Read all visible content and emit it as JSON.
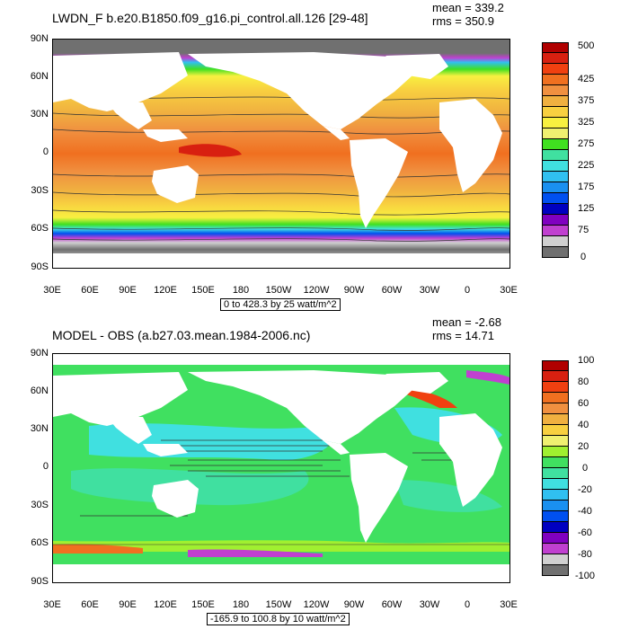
{
  "panels": [
    {
      "title": "LWDN_F b.e20.B1850.f09_g16.pi_control.all.126 [29-48]",
      "mean_label": "mean = 339.2",
      "rms_label": "rms = 350.9",
      "range_label": "0 to 428.3 by 25 watt/m^2",
      "colorbar_labels": [
        "500",
        "425",
        "375",
        "325",
        "275",
        "225",
        "175",
        "125",
        "75",
        "0"
      ],
      "colorbar_colors": [
        "#b00000",
        "#d82010",
        "#f04010",
        "#f07020",
        "#f09040",
        "#f0b040",
        "#f8d040",
        "#f8f040",
        "#f0f070",
        "#40e020",
        "#40e0a0",
        "#40e0e0",
        "#30c0f0",
        "#1a90f0",
        "#0050f0",
        "#0000c0",
        "#8000c0",
        "#c040d0",
        "#d0d0d0",
        "#707070"
      ]
    },
    {
      "title": "MODEL - OBS (a.b27.03.mean.1984-2006.nc)",
      "mean_label": "mean = -2.68",
      "rms_label": "rms = 14.71",
      "range_label": "-165.9 to 100.8 by 10 watt/m^2",
      "colorbar_labels": [
        "100",
        "80",
        "60",
        "40",
        "20",
        "0",
        "-20",
        "-40",
        "-60",
        "-80",
        "-100"
      ],
      "colorbar_colors": [
        "#b00000",
        "#d82010",
        "#f04010",
        "#f07020",
        "#f09040",
        "#f0b040",
        "#f8d040",
        "#f0f070",
        "#a0f030",
        "#40e060",
        "#40e0a0",
        "#40e0e0",
        "#30c0f0",
        "#1a90f0",
        "#0050f0",
        "#0000c0",
        "#8000c0",
        "#c040d0",
        "#d0d0d0",
        "#707070"
      ]
    }
  ],
  "lat_labels": [
    "90N",
    "60N",
    "30N",
    "0",
    "30S",
    "60S",
    "90S"
  ],
  "lon_labels": [
    "30E",
    "60E",
    "90E",
    "120E",
    "150E",
    "180",
    "150W",
    "120W",
    "90W",
    "60W",
    "30W",
    "0",
    "30E"
  ]
}
